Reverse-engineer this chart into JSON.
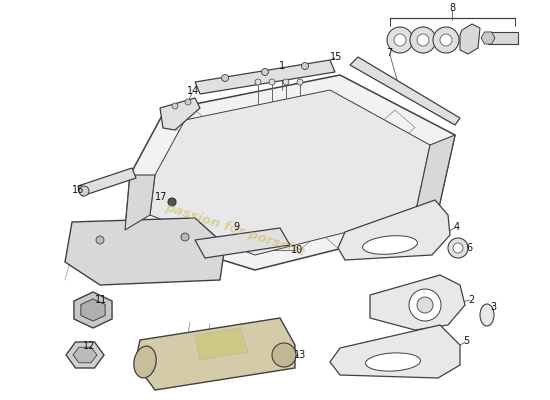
{
  "bg_color": "#ffffff",
  "line_color": "#404040",
  "label_color": "#111111",
  "watermark_color": "#c8b85a",
  "fig_width": 5.5,
  "fig_height": 4.0,
  "dpi": 100
}
